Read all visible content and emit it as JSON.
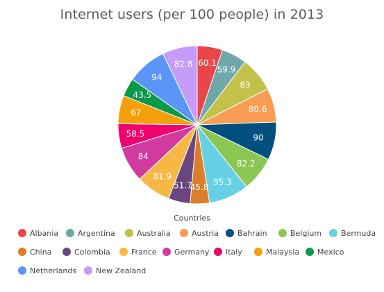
{
  "chart_data": {
    "type": "pie",
    "title": "Internet users (per 100 people) in 2013",
    "legend_title": "Countries",
    "legend_position": "bottom",
    "categories": [
      "Albania",
      "Argentina",
      "Australia",
      "Austria",
      "Bahrain",
      "Belgium",
      "Bermuda",
      "China",
      "Colombia",
      "France",
      "Germany",
      "Italy",
      "Malaysia",
      "Mexico",
      "Netherlands",
      "New Zealand"
    ],
    "values": [
      60.1,
      59.9,
      83,
      80.6,
      90,
      82.2,
      95.3,
      45.8,
      51.7,
      81.9,
      84,
      58.5,
      67,
      43.5,
      94,
      82.8
    ],
    "colors": [
      "#e94649",
      "#6fa8aa",
      "#c2c14a",
      "#f89d53",
      "#00507f",
      "#8cc753",
      "#66d1e5",
      "#dd7e2d",
      "#69467f",
      "#f6b845",
      "#d23aa0",
      "#f0006e",
      "#f59f0b",
      "#099a4a",
      "#5b95f7",
      "#c59cf8"
    ]
  }
}
